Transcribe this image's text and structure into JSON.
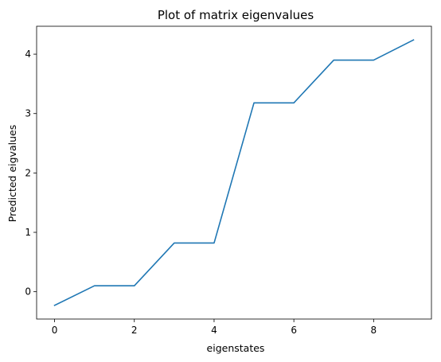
{
  "chart_data": {
    "type": "line",
    "title": "Plot of matrix eigenvalues",
    "xlabel": "eigenstates",
    "ylabel": "Predicted eigvalues",
    "x": [
      0,
      1,
      2,
      3,
      4,
      5,
      6,
      7,
      8,
      9
    ],
    "series": [
      {
        "values": [
          -0.23,
          0.1,
          0.1,
          0.82,
          0.82,
          3.18,
          3.18,
          3.9,
          3.9,
          4.24
        ],
        "color": "#1f77b4"
      }
    ],
    "xlim": [
      -0.45,
      9.45
    ],
    "ylim": [
      -0.46,
      4.47
    ],
    "xticks": [
      "0",
      "2",
      "4",
      "6",
      "8"
    ],
    "yticks": [
      "0",
      "1",
      "2",
      "3",
      "4"
    ],
    "grid": false,
    "legend": "none"
  }
}
